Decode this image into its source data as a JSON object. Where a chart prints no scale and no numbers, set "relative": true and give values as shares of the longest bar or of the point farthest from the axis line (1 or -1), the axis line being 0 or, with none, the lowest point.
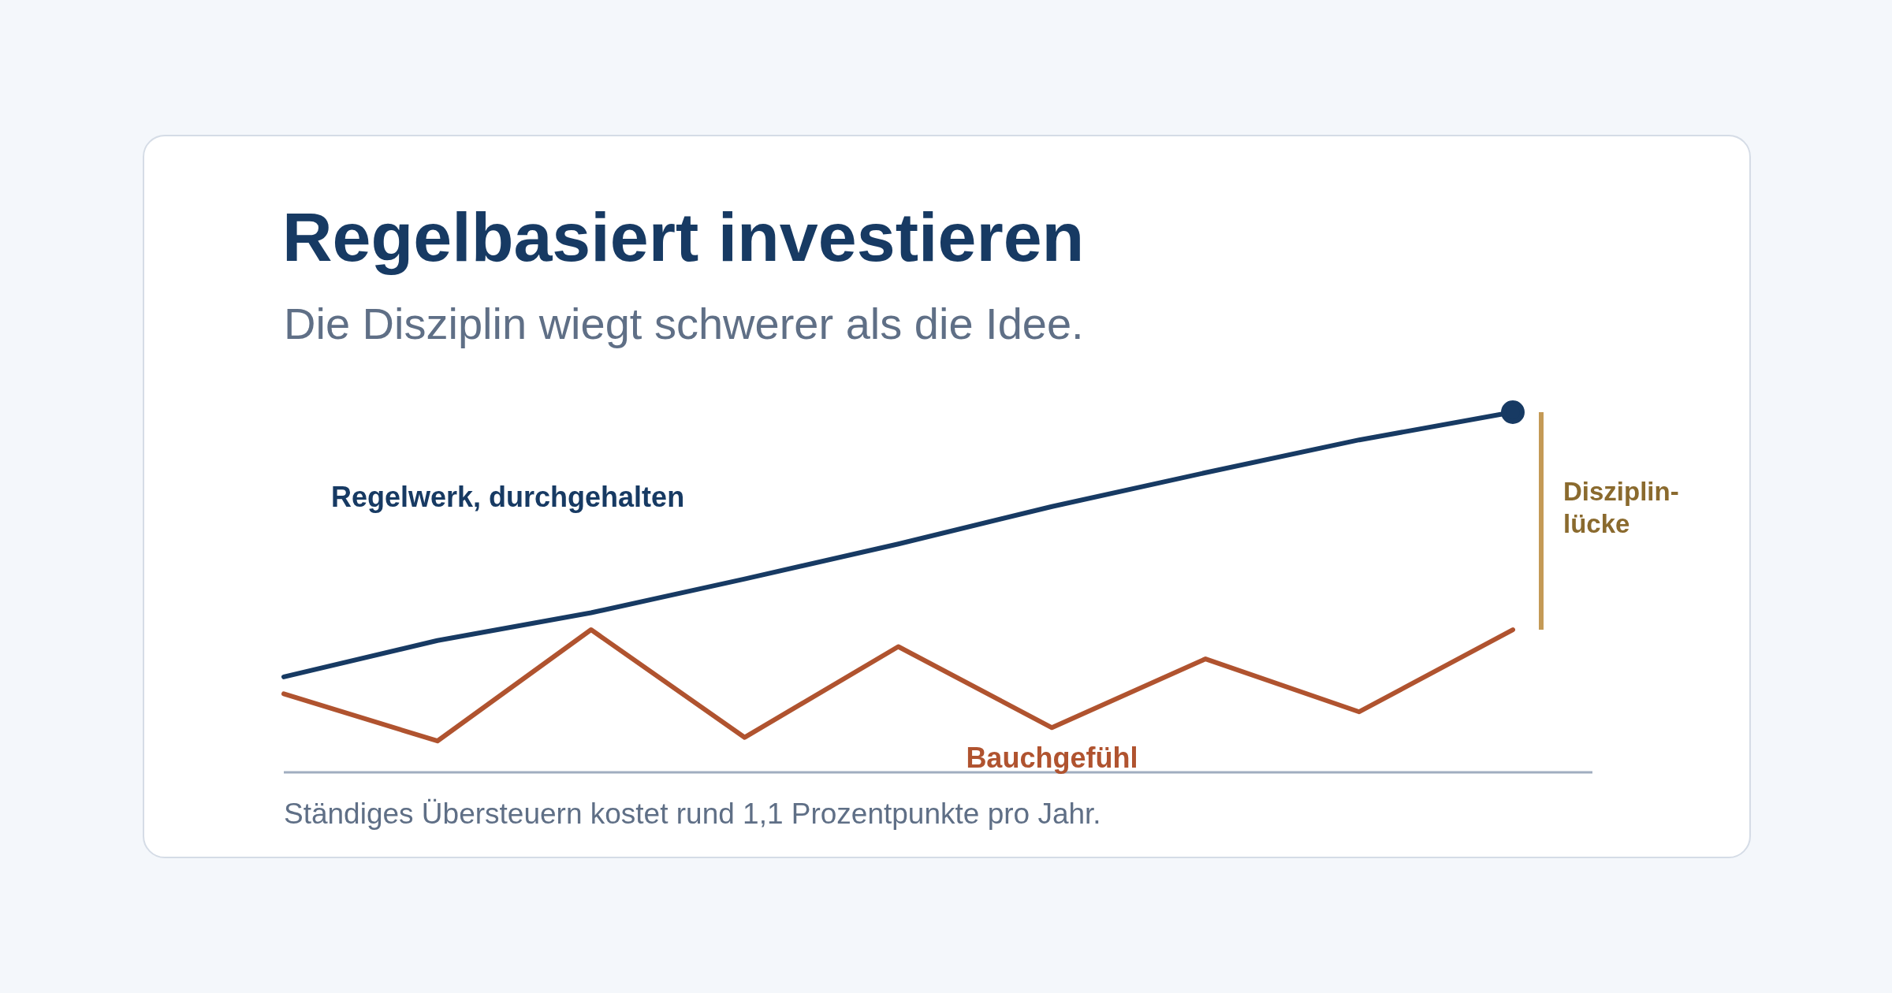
{
  "chart_data": {
    "type": "line",
    "title": "Regelbasiert investieren",
    "subtitle": "Die Disziplin wiegt schwerer als die Idee.",
    "relative": true,
    "categories": [
      null,
      null,
      null,
      null,
      null,
      null,
      null,
      null,
      null
    ],
    "series": [
      {
        "name": "Regelwerk, durchgehalten",
        "color": "#173a63",
        "values": [
          0.265,
          0.366,
          0.443,
          0.537,
          0.634,
          0.738,
          0.832,
          0.923,
          1
        ]
      },
      {
        "name": "Bauchgefühl",
        "color": "#b0532f",
        "values": [
          0.218,
          0.087,
          0.396,
          0.097,
          0.349,
          0.124,
          0.315,
          0.168,
          0.396
        ]
      }
    ],
    "annotations": [
      "Disziplin-lücke",
      "Ständiges Übersteuern kostet rund 1,1 Prozentpunkte pro Jahr."
    ]
  }
}
